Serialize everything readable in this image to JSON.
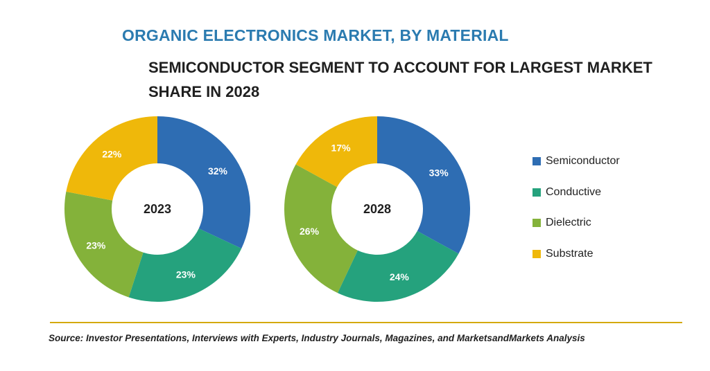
{
  "title": "ORGANIC ELECTRONICS MARKET, BY MATERIAL",
  "subtitle": "SEMICONDUCTOR SEGMENT TO ACCOUNT FOR LARGEST MARKET SHARE IN 2028",
  "source": "Source: Investor Presentations, Interviews with Experts, Industry Journals, Magazines, and MarketsandMarkets Analysis",
  "colors": {
    "Semiconductor": "#2e6db3",
    "Conductive": "#25a27d",
    "Dielectric": "#84b23a",
    "Substrate": "#efb80a"
  },
  "legend": [
    "Semiconductor",
    "Conductive",
    "Dielectric",
    "Substrate"
  ],
  "chart_data": [
    {
      "type": "pie",
      "center_label": "2023",
      "categories": [
        "Semiconductor",
        "Conductive",
        "Dielectric",
        "Substrate"
      ],
      "values": [
        32,
        23,
        23,
        22
      ],
      "labels": [
        "32%",
        "23%",
        "23%",
        "22%"
      ]
    },
    {
      "type": "pie",
      "center_label": "2028",
      "categories": [
        "Semiconductor",
        "Conductive",
        "Dielectric",
        "Substrate"
      ],
      "values": [
        33,
        24,
        26,
        17
      ],
      "labels": [
        "33%",
        "24%",
        "26%",
        "17%"
      ]
    }
  ]
}
